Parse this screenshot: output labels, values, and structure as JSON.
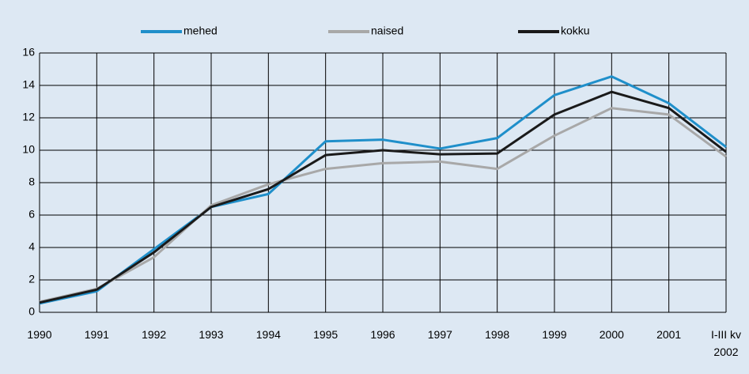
{
  "chart_data": {
    "type": "line",
    "categories": [
      "1990",
      "1991",
      "1992",
      "1993",
      "1994",
      "1995",
      "1996",
      "1997",
      "1998",
      "1999",
      "2000",
      "2001",
      "I-III kv\n2002"
    ],
    "series": [
      {
        "name": "mehed",
        "color": "#1f8fca",
        "values": [
          0.55,
          1.3,
          3.9,
          6.5,
          7.3,
          10.55,
          10.65,
          10.1,
          10.75,
          13.4,
          14.55,
          12.9,
          10.2
        ]
      },
      {
        "name": "naised",
        "color": "#a8a8a8",
        "values": [
          0.65,
          1.45,
          3.4,
          6.6,
          7.9,
          8.85,
          9.2,
          9.3,
          8.85,
          10.9,
          12.6,
          12.2,
          9.6
        ]
      },
      {
        "name": "kokku",
        "color": "#1a1a1a",
        "values": [
          0.6,
          1.4,
          3.7,
          6.5,
          7.6,
          9.7,
          10.0,
          9.75,
          9.8,
          12.2,
          13.6,
          12.6,
          9.9
        ]
      }
    ],
    "ylim": [
      0,
      16
    ],
    "yticks": [
      0,
      2,
      4,
      6,
      8,
      10,
      12,
      14,
      16
    ],
    "grid": true,
    "legend": "top"
  }
}
